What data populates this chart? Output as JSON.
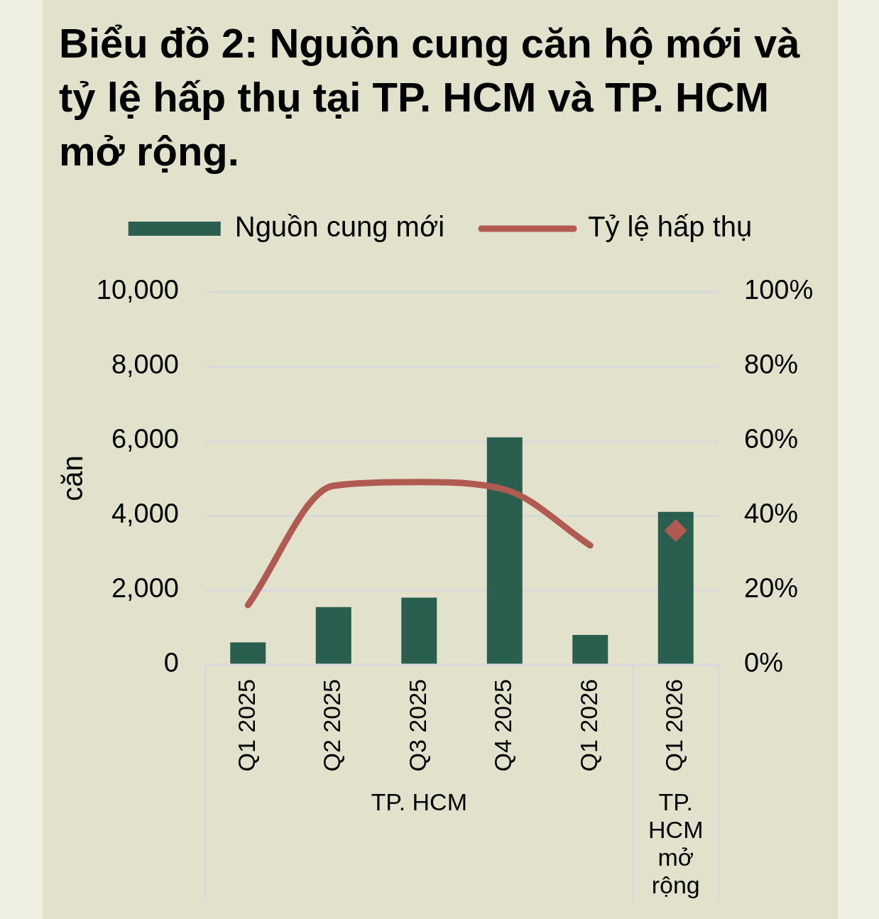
{
  "chart_data": {
    "type": "bar",
    "title": "Biểu đồ 2: Nguồn cung căn hộ mới và tỷ lệ hấp thụ tại TP. HCM và TP. HCM mở rộng.",
    "ylabel": "căn",
    "categories": [
      "Q1 2025",
      "Q2 2025",
      "Q3 2025",
      "Q4 2025",
      "Q1 2026",
      "Q1 2026"
    ],
    "series": [
      {
        "name": "Nguồn cung mới",
        "color": "#2a5f4f",
        "values": [
          600,
          1550,
          1800,
          6100,
          800,
          4100
        ]
      },
      {
        "name": "Tỷ lệ hấp thụ",
        "type": "line",
        "axis": "y2",
        "color": "#b05a52",
        "marker": "none",
        "values": [
          16,
          48,
          49,
          47,
          32,
          null
        ]
      },
      {
        "type": "scatter",
        "axis": "y2",
        "color": "#b05a52",
        "marker": "diamond",
        "values": [
          null,
          null,
          null,
          null,
          null,
          36
        ]
      }
    ],
    "ylim": [
      0,
      10000
    ],
    "yticks": [
      0,
      {
        "value": 2000,
        "label": "2,000"
      },
      {
        "value": 4000,
        "label": "4,000"
      },
      {
        "value": 6000,
        "label": "6,000"
      },
      {
        "value": 8000,
        "label": "8,000"
      },
      {
        "value": 10000,
        "label": "10,000"
      }
    ],
    "y2lim": [
      0,
      100
    ],
    "y2ticks": [
      {
        "value": 0,
        "label": "0%"
      },
      {
        "value": 20,
        "label": "20%"
      },
      {
        "value": 40,
        "label": "40%"
      },
      {
        "value": 60,
        "label": "60%"
      },
      {
        "value": 80,
        "label": "80%"
      },
      {
        "value": 100,
        "label": "100%"
      }
    ],
    "grid": "y",
    "legend": "top",
    "annotations": [
      "TP. HCM",
      "TP. HCM mở rộng"
    ]
  }
}
